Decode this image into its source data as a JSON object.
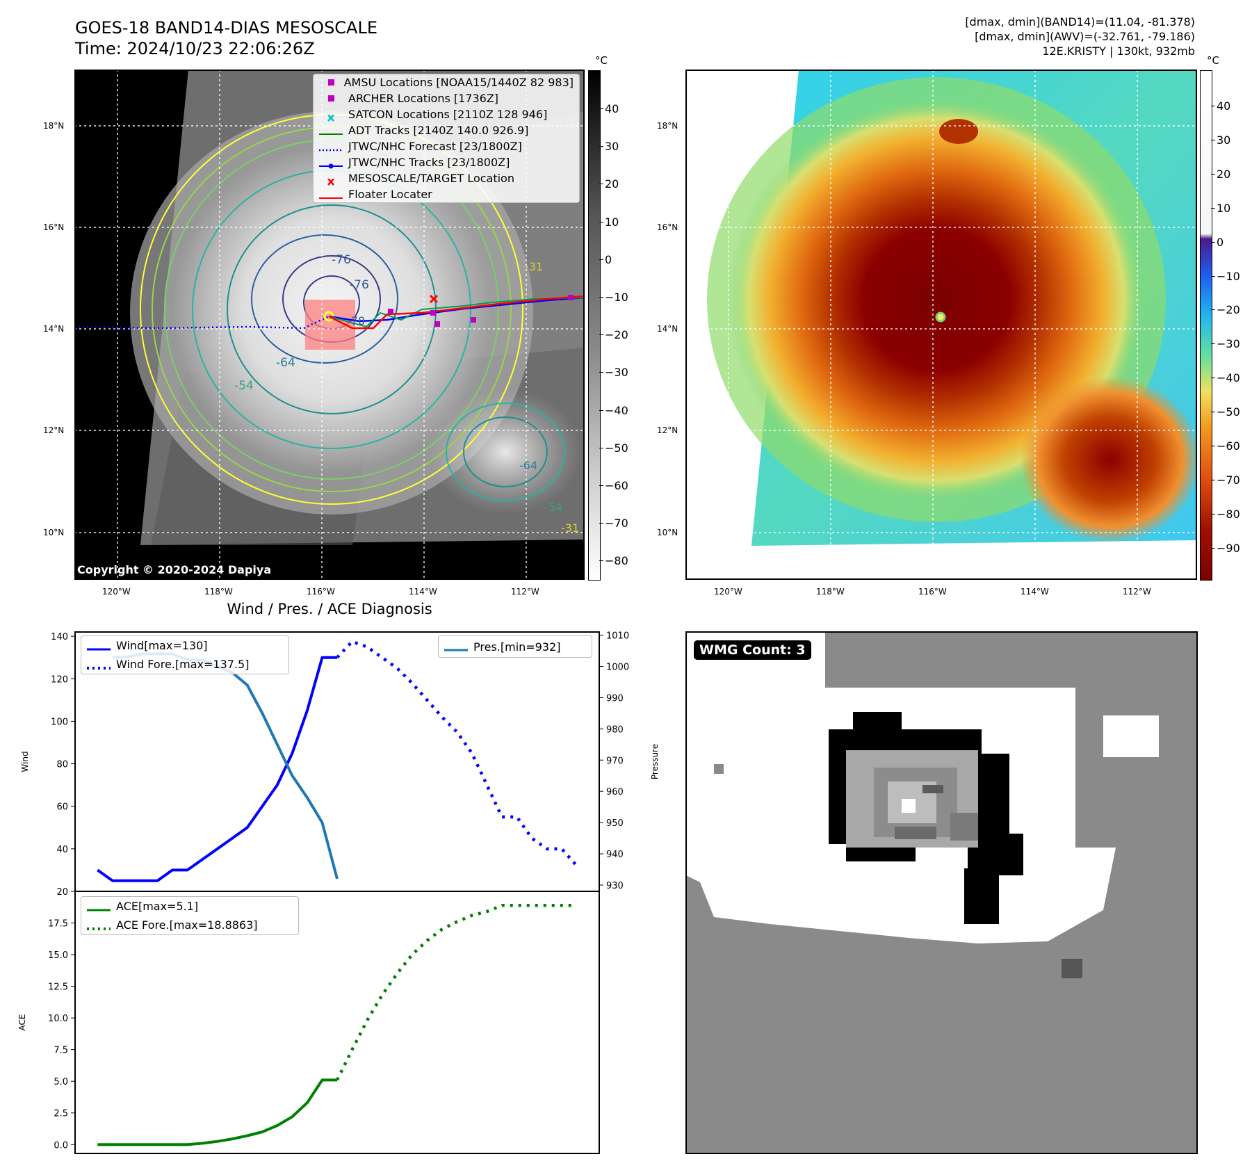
{
  "header": {
    "title_line1": "GOES-18 BAND14-DIAS MESOSCALE",
    "title_line2": "Time: 2024/10/23 22:06:26Z",
    "info_line1": "[dmax, dmin](BAND14)=(11.04, -81.378)",
    "info_line2": "[dmax, dmin](AWV)=(-32.761, -79.186)",
    "info_line3": "12E.KRISTY | 130kt, 932mb"
  },
  "ir_panel": {
    "lat_ticks": [
      "18°N",
      "16°N",
      "14°N",
      "12°N",
      "10°N"
    ],
    "lon_ticks": [
      "120°W",
      "118°W",
      "116°W",
      "114°W",
      "112°W"
    ],
    "copyright": "Copyright © 2020-2024 Dapiya",
    "contour_labels": [
      "-76",
      "-76",
      "-78",
      "-64",
      "-54",
      "-31",
      "-64",
      "-54",
      "-31"
    ],
    "legend": [
      {
        "label": "AMSU Locations [NOAA15/1440Z 82 983]",
        "color": "#bf00bf",
        "kind": "square"
      },
      {
        "label": "ARCHER Locations [1736Z]",
        "color": "#bf00bf",
        "kind": "square"
      },
      {
        "label": "SATCON Locations [2110Z 128 946]",
        "color": "#00bfbf",
        "kind": "x"
      },
      {
        "label": "ADT Tracks [2140Z 140.0 926.9]",
        "color": "#008000",
        "kind": "line"
      },
      {
        "label": "JTWC/NHC Forecast [23/1800Z]",
        "color": "#0000ff",
        "kind": "dotted"
      },
      {
        "label": "JTWC/NHC Tracks [23/1800Z]",
        "color": "#0000ff",
        "kind": "linedot"
      },
      {
        "label": "MESOSCALE/TARGET Location",
        "color": "#ff0000",
        "kind": "redx"
      },
      {
        "label": "Floater Locater",
        "color": "#ff0000",
        "kind": "line"
      }
    ],
    "colorbar_unit": "°C",
    "colorbar_ticks": [
      "40",
      "30",
      "20",
      "10",
      "0",
      "−10",
      "−20",
      "−30",
      "−40",
      "−50",
      "−60",
      "−70",
      "−80"
    ]
  },
  "awv_panel": {
    "lat_ticks": [
      "18°N",
      "16°N",
      "14°N",
      "12°N",
      "10°N"
    ],
    "lon_ticks": [
      "120°W",
      "118°W",
      "116°W",
      "114°W",
      "112°W"
    ],
    "colorbar_unit": "°C",
    "colorbar_ticks": [
      "40",
      "30",
      "20",
      "10",
      "0",
      "−10",
      "−20",
      "−30",
      "−40",
      "−50",
      "−60",
      "−70",
      "−80",
      "−90"
    ]
  },
  "wmg_panel": {
    "badge": "WMG Count: 3"
  },
  "chart_data": [
    {
      "type": "line",
      "title": "Wind / Pres. / ACE Diagnosis",
      "ylabel": "Wind",
      "ylabel_right": "Pressure",
      "ylim": [
        20,
        142
      ],
      "ylim_right": [
        928,
        1011
      ],
      "xlim": [
        -1.5,
        33.5
      ],
      "yticks": [
        "140",
        "120",
        "100",
        "80",
        "60",
        "40",
        "20"
      ],
      "yticks_right": [
        "1010",
        "1000",
        "990",
        "980",
        "970",
        "960",
        "950",
        "940",
        "930"
      ],
      "series": [
        {
          "name": "Wind[max=130]",
          "color": "#0000ff",
          "style": "solid",
          "x": [
            0,
            1,
            2,
            3,
            4,
            5,
            6,
            7,
            8,
            9,
            10,
            11,
            12,
            13,
            14,
            15,
            16
          ],
          "values": [
            30,
            25,
            25,
            25,
            25,
            30,
            30,
            35,
            40,
            45,
            50,
            60,
            70,
            85,
            105,
            130,
            130
          ]
        },
        {
          "name": "Wind Fore.[max=137.5]",
          "color": "#0000ff",
          "style": "dotted",
          "x": [
            16,
            17,
            18,
            19,
            20,
            21,
            22,
            23,
            24,
            25,
            26,
            27,
            28,
            29,
            30,
            31,
            32
          ],
          "values": [
            130,
            137.5,
            135,
            130,
            125,
            118,
            110,
            102,
            95,
            85,
            70,
            55,
            55,
            45,
            40,
            40,
            32
          ]
        },
        {
          "name": "Pres.[min=932]",
          "color": "#1f77b4",
          "style": "solid",
          "axis": "right",
          "x": [
            1,
            2,
            3,
            4,
            5,
            6,
            7,
            8,
            9,
            10,
            11,
            12,
            13,
            14,
            15,
            16
          ],
          "values": [
            1003,
            1003,
            1004,
            1004,
            1004,
            1002,
            1002,
            1000,
            998,
            994,
            985,
            975,
            965,
            958,
            950,
            932
          ]
        }
      ]
    },
    {
      "type": "line",
      "ylabel": "ACE",
      "ylim": [
        -0.7,
        20.0
      ],
      "xlim": [
        -1.5,
        33.5
      ],
      "yticks": [
        "17.5",
        "15.0",
        "12.5",
        "10.0",
        "7.5",
        "5.0",
        "2.5",
        "0.0"
      ],
      "series": [
        {
          "name": "ACE[max=5.1]",
          "color": "#008000",
          "style": "solid",
          "x": [
            0,
            1,
            2,
            3,
            4,
            5,
            6,
            7,
            8,
            9,
            10,
            11,
            12,
            13,
            14,
            15,
            16
          ],
          "values": [
            0,
            0,
            0,
            0,
            0,
            0,
            0,
            0.1,
            0.25,
            0.45,
            0.7,
            1.0,
            1.5,
            2.2,
            3.3,
            5.1,
            5.1
          ]
        },
        {
          "name": "ACE Fore.[max=18.8863]",
          "color": "#008000",
          "style": "dotted",
          "x": [
            16,
            17,
            18,
            19,
            20,
            21,
            22,
            23,
            24,
            25,
            26,
            27,
            28,
            29,
            30,
            31,
            32
          ],
          "values": [
            5.1,
            7.5,
            9.8,
            11.8,
            13.5,
            15.0,
            16.1,
            17.0,
            17.6,
            18.1,
            18.4,
            18.8863,
            18.8863,
            18.8863,
            18.8863,
            18.8863,
            18.8863
          ]
        }
      ]
    }
  ]
}
